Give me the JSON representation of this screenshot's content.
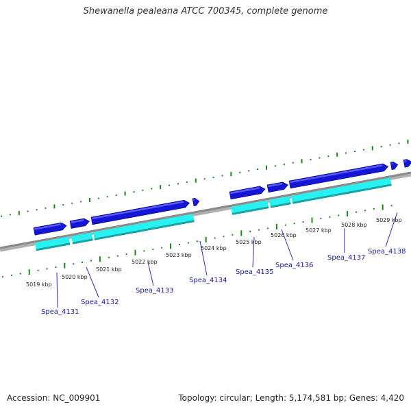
{
  "title": "Shewanella pealeana ATCC 700345, complete genome",
  "footer": {
    "accession": "Accession: NC_009901",
    "summary": "Topology: circular; Length: 5,174,581 bp; Genes: 4,420"
  },
  "colors": {
    "backbone": "#8a8a8a",
    "forward_gene": "#1515d6",
    "cds": "#27f2f2",
    "cds_shadow": "#1aa3a3",
    "tick": "#148a14",
    "label_line": "#2a2ab0"
  },
  "scale_labels": [
    "5019 kbp",
    "5020 kbp",
    "5021 kbp",
    "5022 kbp",
    "5023 kbp",
    "5024 kbp",
    "5025 kbp",
    "5026 kbp",
    "5027 kbp",
    "5028 kbp",
    "5029 kbp"
  ],
  "genes": [
    {
      "name": "Spea_4131"
    },
    {
      "name": "Spea_4132"
    },
    {
      "name": "Spea_4133"
    },
    {
      "name": "Spea_4134"
    },
    {
      "name": "Spea_4135"
    },
    {
      "name": "Spea_4136"
    },
    {
      "name": "Spea_4137"
    },
    {
      "name": "Spea_4138"
    }
  ]
}
